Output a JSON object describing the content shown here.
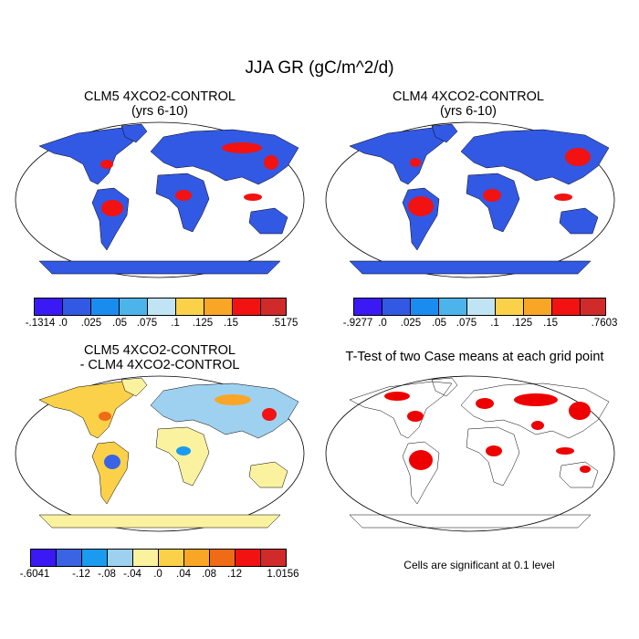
{
  "figure": {
    "title": "JJA GR (gC/m^2/d)",
    "panels": [
      {
        "title_line1": "CLM5 4XCO2-CONTROL",
        "title_line2": "(yrs 6-10)",
        "colorbar_labels": [
          "-.1314",
          ".0",
          ".025",
          ".05",
          ".075",
          ".1",
          ".125",
          ".15",
          ".5175"
        ]
      },
      {
        "title_line1": "CLM4 4XCO2-CONTROL",
        "title_line2": "(yrs 6-10)",
        "colorbar_labels": [
          "-.9277",
          ".0",
          ".025",
          ".05",
          ".075",
          ".1",
          ".125",
          ".15",
          ".7603"
        ]
      },
      {
        "title_line1": "CLM5 4XCO2-CONTROL",
        "title_line2": "- CLM4 4XCO2-CONTROL",
        "colorbar_labels": [
          "-.6041",
          "-.12",
          "-.08",
          "-.04",
          ".0",
          ".04",
          ".08",
          ".12",
          "1.0156"
        ]
      },
      {
        "title_line1": "T-Test of two Case means at each grid point",
        "note": "Cells are significant at 0.1 level"
      }
    ],
    "colors": {
      "abs_scale": [
        "#3b19f5",
        "#3259e4",
        "#1a8cf0",
        "#4cb4ea",
        "#c0e4f4",
        "#fbd14a",
        "#f9a627",
        "#f06b16",
        "#f21212",
        "#d02a2a"
      ],
      "diff_scale": [
        "#3b19f5",
        "#3a64e3",
        "#1a9bf0",
        "#9ed1ef",
        "#fbf2a0",
        "#fbd14a",
        "#f9a627",
        "#f06b16",
        "#f21212",
        "#d02a2a"
      ],
      "significance": "#ee0000"
    }
  }
}
